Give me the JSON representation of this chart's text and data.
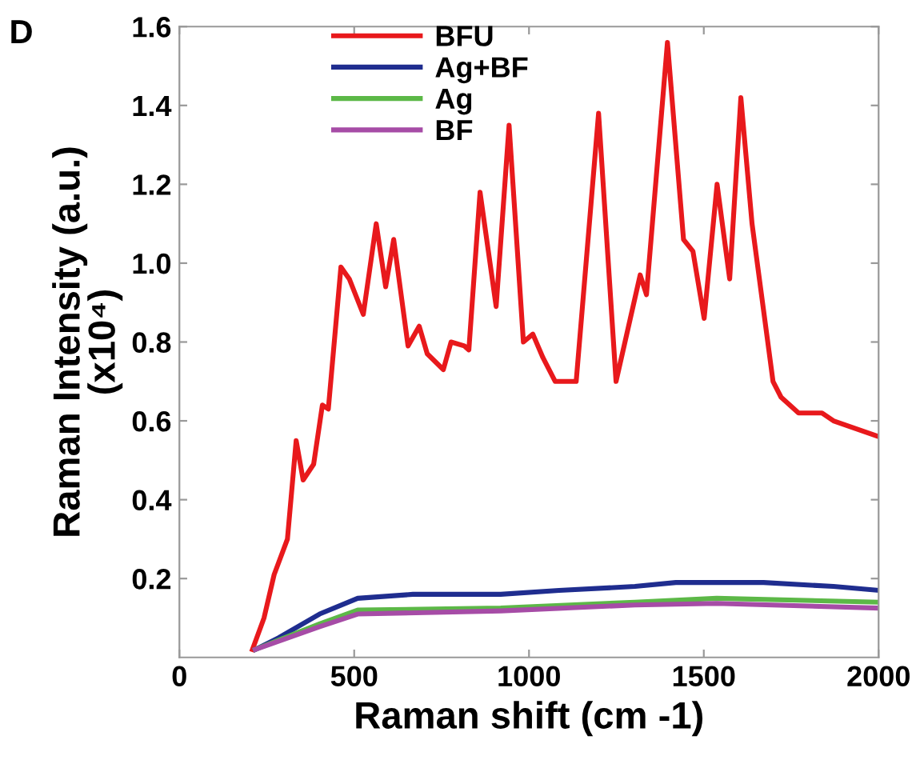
{
  "chart_data": {
    "type": "line",
    "xlabel": "Raman shift (cm -1)",
    "ylabel": "Raman Intensity (a.u.)\n(x10⁴)",
    "annotations": [
      "D"
    ],
    "xlim": [
      0,
      2000
    ],
    "xticks": [
      0,
      500,
      1000,
      1500,
      2000
    ],
    "ylim": [
      0,
      1.6
    ],
    "yticks": [
      0.2,
      0.4,
      0.6,
      0.8,
      {
        "value": 1.0,
        "label": "1.0"
      },
      1.2,
      1.4,
      1.6
    ],
    "legend": "top",
    "grid": false,
    "marker": "none",
    "line_style": "solid",
    "series": [
      {
        "name": "BFU",
        "color": "#e8191c",
        "x": [
          209,
          242,
          271,
          309,
          334,
          354,
          384,
          409,
          426,
          435,
          462,
          486,
          526,
          563,
          590,
          613,
          654,
          686,
          709,
          755,
          777,
          815,
          828,
          860,
          906,
          943,
          984,
          1011,
          1040,
          1075,
          1135,
          1199,
          1249,
          1318,
          1336,
          1396,
          1442,
          1469,
          1501,
          1538,
          1574,
          1606,
          1638,
          1698,
          1721,
          1771,
          1838,
          1871,
          2000
        ],
        "values": [
          0.02,
          0.1,
          0.21,
          0.3,
          0.55,
          0.45,
          0.49,
          0.64,
          0.63,
          0.72,
          0.99,
          0.96,
          0.87,
          1.1,
          0.94,
          1.06,
          0.79,
          0.84,
          0.77,
          0.73,
          0.8,
          0.79,
          0.78,
          1.18,
          0.89,
          1.35,
          0.8,
          0.82,
          0.76,
          0.7,
          0.7,
          1.38,
          0.7,
          0.97,
          0.92,
          1.56,
          1.06,
          1.03,
          0.86,
          1.2,
          0.96,
          1.42,
          1.1,
          0.7,
          0.66,
          0.62,
          0.62,
          0.6,
          0.56
        ]
      },
      {
        "name": "Ag+BF",
        "color": "#1f2d8f",
        "x": [
          217,
          284,
          401,
          510,
          668,
          919,
          1086,
          1303,
          1420,
          1537,
          1671,
          1871,
          2000
        ],
        "values": [
          0.02,
          0.05,
          0.11,
          0.15,
          0.16,
          0.16,
          0.17,
          0.18,
          0.19,
          0.19,
          0.19,
          0.18,
          0.17
        ]
      },
      {
        "name": "Ag",
        "color": "#5cb847",
        "x": [
          217,
          401,
          510,
          919,
          1303,
          1537,
          2000
        ],
        "values": [
          0.02,
          0.085,
          0.12,
          0.125,
          0.14,
          0.15,
          0.14
        ]
      },
      {
        "name": "BF",
        "color": "#a64ca6",
        "x": [
          217,
          401,
          510,
          919,
          1303,
          1537,
          2000
        ],
        "values": [
          0.02,
          0.078,
          0.11,
          0.118,
          0.133,
          0.137,
          0.125
        ]
      }
    ]
  }
}
